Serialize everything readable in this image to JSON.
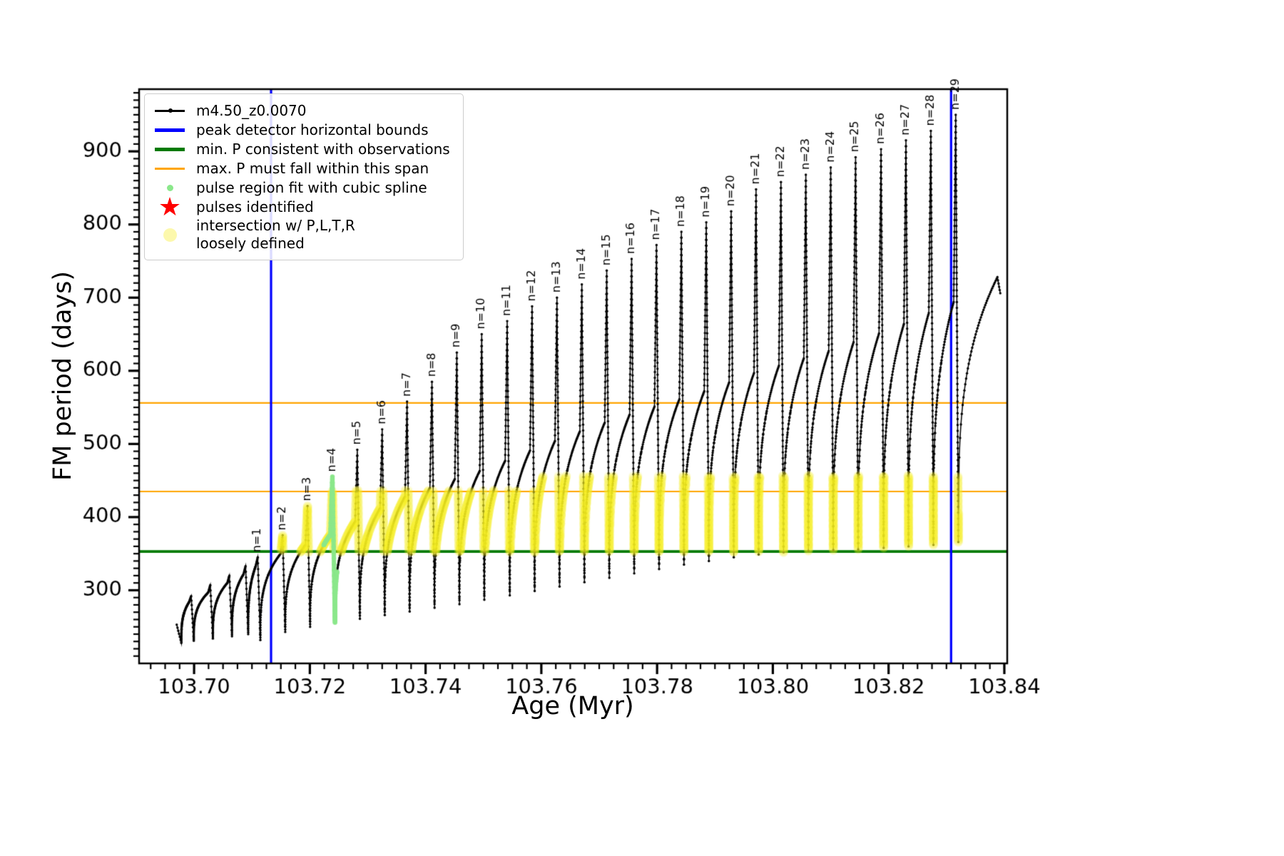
{
  "figure": {
    "background": "#ffffff"
  },
  "legend": {
    "items": [
      {
        "swatch": "series-line",
        "label": "m4.50_z0.0070"
      },
      {
        "swatch": "blue-thick-line",
        "label": "peak detector horizontal bounds"
      },
      {
        "swatch": "green-thick-line",
        "label": "min. P consistent with observations"
      },
      {
        "swatch": "orange-line",
        "label": "max. P must fall within this span"
      },
      {
        "swatch": "green-dot",
        "label": "pulse region fit with cubic spline"
      },
      {
        "swatch": "red-star",
        "glyph": "★",
        "label": "pulses identified"
      },
      {
        "swatch": "yellow-dot",
        "label": "intersection w/ P,L,T,R",
        "label2": "loosely defined"
      }
    ]
  },
  "chart_data": {
    "type": "line",
    "title": "",
    "series_name": "m4.50_z0.0070",
    "xlabel": "Age (Myr)",
    "ylabel": "FM period (days)",
    "xlim": [
      103.6905,
      103.8405
    ],
    "ylim": [
      200,
      985
    ],
    "x_major_ticks": [
      103.7,
      103.72,
      103.74,
      103.76,
      103.78,
      103.8,
      103.82,
      103.84
    ],
    "x_tick_labels": [
      "103.70",
      "103.72",
      "103.74",
      "103.76",
      "103.78",
      "103.80",
      "103.82",
      "103.84"
    ],
    "x_minor_start": 103.6925,
    "x_minor_step": 0.0025,
    "y_major_ticks": [
      300,
      400,
      500,
      600,
      700,
      800,
      900
    ],
    "y_tick_labels": [
      "300",
      "400",
      "500",
      "600",
      "700",
      "800",
      "900"
    ],
    "y_minor_start": 210,
    "y_minor_step": 10,
    "grid": false,
    "line_color": "#000000",
    "vlines": {
      "label": "peak detector horizontal bounds",
      "color": "#0000ff",
      "x": [
        103.7133,
        103.8308
      ]
    },
    "hline_min": {
      "label": "min. P consistent with observations",
      "color": "#007a00",
      "y": 353
    },
    "hlines_span": {
      "label": "max. P must fall within this span",
      "color": "#ffa500",
      "y": [
        435,
        556
      ]
    },
    "lead_in": {
      "x_start": 103.697,
      "y_start": 253,
      "x_trough": 103.6978,
      "y_trough": 228
    },
    "spike_width_up": 0.00035,
    "spike_width_down": 0.00045,
    "pulses": [
      {
        "label": "",
        "x": 103.6995,
        "peak": 292,
        "shoulder": 284,
        "trough_before": 228
      },
      {
        "label": "",
        "x": 103.7028,
        "peak": 307,
        "shoulder": 297,
        "trough_before": 231
      },
      {
        "label": "",
        "x": 103.7061,
        "peak": 320,
        "shoulder": 310,
        "trough_before": 234
      },
      {
        "label": "",
        "x": 103.7089,
        "peak": 333,
        "shoulder": 322,
        "trough_before": 237
      },
      {
        "label": "n=1",
        "x": 103.711,
        "peak": 345,
        "shoulder": 333,
        "trough_before": 240
      },
      {
        "label": "n=2",
        "x": 103.7153,
        "peak": 375,
        "shoulder": 350,
        "trough_before": 232
      },
      {
        "label": "n=3",
        "x": 103.7196,
        "peak": 415,
        "shoulder": 362,
        "trough_before": 243
      },
      {
        "label": "n=4",
        "x": 103.7239,
        "peak": 455,
        "shoulder": 376,
        "trough_before": 250
      },
      {
        "label": "n=5",
        "x": 103.7282,
        "peak": 492,
        "shoulder": 394,
        "trough_before": 256
      },
      {
        "label": "n=6",
        "x": 103.7325,
        "peak": 520,
        "shoulder": 412,
        "trough_before": 261
      },
      {
        "label": "n=7",
        "x": 103.7368,
        "peak": 558,
        "shoulder": 428,
        "trough_before": 266
      },
      {
        "label": "n=8",
        "x": 103.7411,
        "peak": 585,
        "shoulder": 440,
        "trough_before": 271
      },
      {
        "label": "n=9",
        "x": 103.7454,
        "peak": 625,
        "shoulder": 452,
        "trough_before": 276
      },
      {
        "label": "n=10",
        "x": 103.7497,
        "peak": 650,
        "shoulder": 463,
        "trough_before": 281
      },
      {
        "label": "n=11",
        "x": 103.7541,
        "peak": 668,
        "shoulder": 477,
        "trough_before": 287
      },
      {
        "label": "n=12",
        "x": 103.7584,
        "peak": 688,
        "shoulder": 491,
        "trough_before": 293
      },
      {
        "label": "n=13",
        "x": 103.7627,
        "peak": 700,
        "shoulder": 504,
        "trough_before": 299
      },
      {
        "label": "n=14",
        "x": 103.767,
        "peak": 718,
        "shoulder": 517,
        "trough_before": 305
      },
      {
        "label": "n=15",
        "x": 103.7713,
        "peak": 737,
        "shoulder": 529,
        "trough_before": 311
      },
      {
        "label": "n=16",
        "x": 103.7756,
        "peak": 753,
        "shoulder": 540,
        "trough_before": 317
      },
      {
        "label": "n=17",
        "x": 103.7799,
        "peak": 772,
        "shoulder": 551,
        "trough_before": 323
      },
      {
        "label": "n=18",
        "x": 103.7842,
        "peak": 790,
        "shoulder": 561,
        "trough_before": 329
      },
      {
        "label": "n=19",
        "x": 103.7885,
        "peak": 803,
        "shoulder": 572,
        "trough_before": 335
      },
      {
        "label": "n=20",
        "x": 103.7928,
        "peak": 818,
        "shoulder": 584,
        "trough_before": 340
      },
      {
        "label": "n=21",
        "x": 103.7971,
        "peak": 848,
        "shoulder": 597,
        "trough_before": 345
      },
      {
        "label": "n=22",
        "x": 103.8014,
        "peak": 858,
        "shoulder": 607,
        "trough_before": 349
      },
      {
        "label": "n=23",
        "x": 103.8057,
        "peak": 868,
        "shoulder": 617,
        "trough_before": 352
      },
      {
        "label": "n=24",
        "x": 103.81,
        "peak": 878,
        "shoulder": 627,
        "trough_before": 354
      },
      {
        "label": "n=25",
        "x": 103.8143,
        "peak": 892,
        "shoulder": 639,
        "trough_before": 355
      },
      {
        "label": "n=26",
        "x": 103.8187,
        "peak": 903,
        "shoulder": 651,
        "trough_before": 356
      },
      {
        "label": "n=27",
        "x": 103.823,
        "peak": 915,
        "shoulder": 664,
        "trough_before": 358
      },
      {
        "label": "n=28",
        "x": 103.8273,
        "peak": 928,
        "shoulder": 679,
        "trough_before": 360
      },
      {
        "label": "n=29",
        "x": 103.8316,
        "peak": 950,
        "shoulder": 694,
        "trough_before": 362
      }
    ],
    "tail": {
      "trough_after_last": 366,
      "x_end": 103.8388,
      "y_end": 728,
      "x_drop": 103.8393,
      "y_drop": 706
    },
    "spline_region": {
      "label": "pulse region fit with cubic spline",
      "x_min": 103.7224,
      "x_max": 103.7247,
      "color": "#8be88b"
    },
    "intersection_region": {
      "label": "intersection w/ P,L,T,R loosely defined",
      "x_min": 103.715,
      "x_max": 103.8321,
      "y_min": 352,
      "y_max_near": 437,
      "y_max_far": 457,
      "x_switch": 103.759,
      "color": "#f9f025"
    },
    "pulses_identified": {
      "label": "pulses identified",
      "color": "#ff0000",
      "points": []
    }
  }
}
